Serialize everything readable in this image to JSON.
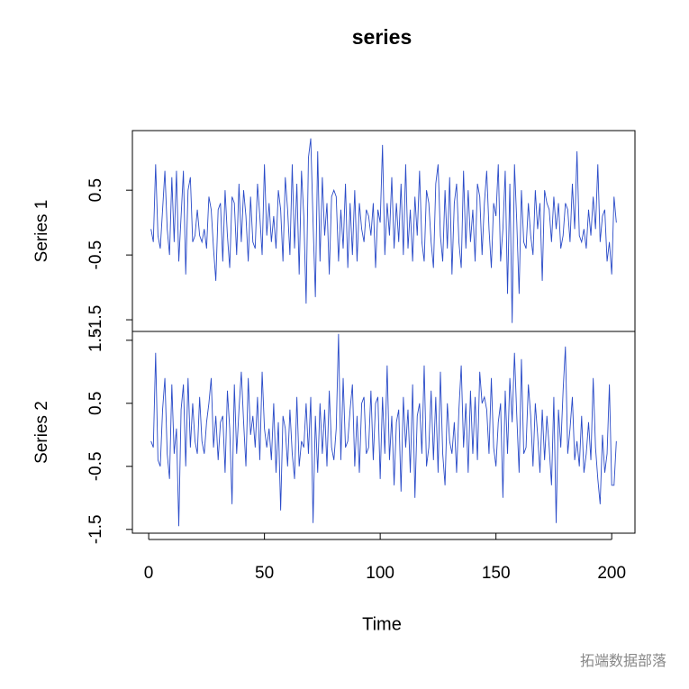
{
  "chart_data": {
    "type": "line",
    "title": "series",
    "xlabel": "Time",
    "x": [
      1,
      2,
      3,
      4,
      5,
      6,
      7,
      8,
      9,
      10,
      11,
      12,
      13,
      14,
      15,
      16,
      17,
      18,
      19,
      20,
      21,
      22,
      23,
      24,
      25,
      26,
      27,
      28,
      29,
      30,
      31,
      32,
      33,
      34,
      35,
      36,
      37,
      38,
      39,
      40,
      41,
      42,
      43,
      44,
      45,
      46,
      47,
      48,
      49,
      50,
      51,
      52,
      53,
      54,
      55,
      56,
      57,
      58,
      59,
      60,
      61,
      62,
      63,
      64,
      65,
      66,
      67,
      68,
      69,
      70,
      71,
      72,
      73,
      74,
      75,
      76,
      77,
      78,
      79,
      80,
      81,
      82,
      83,
      84,
      85,
      86,
      87,
      88,
      89,
      90,
      91,
      92,
      93,
      94,
      95,
      96,
      97,
      98,
      99,
      100,
      101,
      102,
      103,
      104,
      105,
      106,
      107,
      108,
      109,
      110,
      111,
      112,
      113,
      114,
      115,
      116,
      117,
      118,
      119,
      120,
      121,
      122,
      123,
      124,
      125,
      126,
      127,
      128,
      129,
      130,
      131,
      132,
      133,
      134,
      135,
      136,
      137,
      138,
      139,
      140,
      141,
      142,
      143,
      144,
      145,
      146,
      147,
      148,
      149,
      150,
      151,
      152,
      153,
      154,
      155,
      156,
      157,
      158,
      159,
      160,
      161,
      162,
      163,
      164,
      165,
      166,
      167,
      168,
      169,
      170,
      171,
      172,
      173,
      174,
      175,
      176,
      177,
      178,
      179,
      180,
      181,
      182,
      183,
      184,
      185,
      186,
      187,
      188,
      189,
      190,
      191,
      192,
      193,
      194,
      195,
      196,
      197,
      198,
      199,
      200,
      201,
      202
    ],
    "xlim": [
      -7.04,
      210.04
    ],
    "xticks": [
      0,
      50,
      100,
      150,
      200
    ],
    "series": [
      {
        "name": "Series 1",
        "color": "#2a4bc8",
        "ylim": [
          -1.68,
          1.42
        ],
        "yticks": [
          -1.5,
          -0.5,
          0.5
        ],
        "values": [
          -0.1,
          -0.3,
          0.9,
          -0.2,
          -0.4,
          0.2,
          0.8,
          -0.1,
          -0.5,
          0.7,
          -0.3,
          0.8,
          -0.6,
          0.1,
          0.8,
          -0.8,
          0.5,
          0.7,
          -0.3,
          -0.2,
          0.2,
          -0.2,
          -0.3,
          -0.1,
          -0.4,
          0.4,
          0.2,
          -0.4,
          -0.9,
          0.2,
          0.3,
          -0.6,
          0.5,
          -0.2,
          -0.7,
          0.4,
          0.3,
          -0.5,
          0.6,
          -0.3,
          0.5,
          0.1,
          -0.6,
          0.4,
          -0.3,
          -0.4,
          0.6,
          0.1,
          -0.5,
          0.9,
          -0.2,
          0.3,
          -0.3,
          0.1,
          -0.4,
          0.5,
          0.2,
          -0.6,
          0.7,
          0.2,
          -0.5,
          0.9,
          -0.4,
          0.6,
          -0.8,
          0.8,
          0.1,
          -1.25,
          1.0,
          1.3,
          0.0,
          -1.15,
          1.1,
          -0.6,
          0.7,
          -0.2,
          0.3,
          -0.8,
          0.4,
          0.5,
          0.4,
          -0.6,
          0.2,
          -0.4,
          0.6,
          -0.7,
          0.3,
          -0.5,
          0.5,
          -0.6,
          0.3,
          -0.1,
          -0.3,
          0.2,
          0.1,
          -0.2,
          0.3,
          -0.7,
          0.2,
          0.0,
          1.2,
          -0.5,
          0.3,
          -0.2,
          0.7,
          -0.4,
          0.3,
          -0.3,
          0.6,
          -0.5,
          0.9,
          -0.4,
          0.2,
          -0.6,
          0.4,
          -0.2,
          0.8,
          -0.3,
          -0.6,
          0.5,
          0.3,
          -0.3,
          -0.7,
          0.6,
          0.9,
          -0.2,
          -0.6,
          0.5,
          -0.4,
          0.7,
          -0.8,
          0.3,
          0.6,
          -0.3,
          -0.7,
          0.8,
          -0.4,
          0.5,
          -0.3,
          0.2,
          -0.6,
          0.6,
          0.4,
          -0.5,
          0.3,
          0.8,
          -0.1,
          -0.7,
          0.3,
          0.1,
          0.9,
          -0.6,
          -0.1,
          0.8,
          -1.1,
          0.6,
          -1.55,
          0.9,
          0.0,
          -1.1,
          0.5,
          -0.3,
          -0.4,
          0.3,
          -0.2,
          -0.5,
          0.5,
          -0.1,
          0.3,
          -0.9,
          0.5,
          0.3,
          0.2,
          -0.3,
          0.4,
          -0.1,
          0.3,
          -0.4,
          -0.2,
          0.3,
          0.2,
          -0.3,
          0.6,
          -0.1,
          1.1,
          -0.2,
          -0.3,
          -0.1,
          -0.4,
          0.2,
          -0.2,
          0.4,
          -0.1,
          0.9,
          -0.3,
          0.1,
          0.2,
          -0.6,
          -0.3,
          -0.8,
          0.4,
          0.0
        ]
      },
      {
        "name": "Series 2",
        "color": "#2a4bc8",
        "ylim": [
          -1.56,
          1.64
        ],
        "yticks": [
          -1.5,
          -0.5,
          0.5,
          1.5
        ],
        "values": [
          -0.1,
          -0.2,
          1.3,
          -0.4,
          -0.5,
          0.4,
          0.9,
          -0.3,
          -0.7,
          0.8,
          -0.3,
          0.1,
          -1.45,
          0.4,
          0.8,
          -0.5,
          0.9,
          -0.2,
          0.5,
          -0.1,
          -0.3,
          0.6,
          -0.1,
          -0.3,
          0.2,
          0.5,
          0.9,
          -0.2,
          0.3,
          -0.4,
          0.2,
          0.3,
          -0.6,
          0.7,
          0.1,
          -1.1,
          0.8,
          -0.3,
          0.4,
          1.0,
          0.2,
          -0.5,
          0.9,
          0.0,
          0.3,
          -0.2,
          0.6,
          -0.4,
          1.0,
          0.1,
          -0.2,
          0.1,
          -0.4,
          0.5,
          -0.6,
          0.2,
          -1.2,
          0.3,
          0.1,
          -0.5,
          0.4,
          -0.3,
          -0.7,
          0.6,
          -0.5,
          -0.1,
          -0.2,
          0.5,
          -0.3,
          0.6,
          -1.4,
          0.3,
          -0.6,
          0.5,
          -0.3,
          0.4,
          -0.5,
          0.7,
          -0.2,
          -0.4,
          0.1,
          1.6,
          -0.4,
          0.9,
          -0.2,
          -0.1,
          0.4,
          0.8,
          -0.5,
          0.3,
          -0.6,
          0.5,
          0.6,
          -0.3,
          -0.2,
          0.7,
          -0.4,
          0.5,
          0.6,
          -0.7,
          0.6,
          -0.3,
          1.1,
          -0.4,
          0.3,
          -0.8,
          0.2,
          0.4,
          -0.9,
          0.6,
          -0.2,
          0.4,
          -0.6,
          0.8,
          -1.0,
          0.3,
          0.5,
          -0.3,
          1.1,
          -0.5,
          -0.2,
          0.7,
          -0.4,
          0.6,
          -0.6,
          1.0,
          -0.3,
          -0.8,
          0.5,
          -0.1,
          -0.3,
          0.2,
          -0.6,
          0.4,
          1.1,
          -0.2,
          0.5,
          -0.6,
          0.7,
          -0.3,
          0.6,
          -0.4,
          1.0,
          0.5,
          0.6,
          0.4,
          -0.3,
          0.9,
          -0.2,
          -0.5,
          0.2,
          0.5,
          -1.0,
          0.7,
          -0.3,
          0.9,
          0.2,
          1.3,
          0.3,
          -0.6,
          1.2,
          -0.3,
          -0.2,
          0.8,
          0.3,
          -0.5,
          0.5,
          0.0,
          -0.6,
          0.4,
          -0.4,
          0.3,
          -0.2,
          -0.8,
          0.6,
          -1.4,
          0.4,
          -0.2,
          0.7,
          1.4,
          -0.3,
          0.1,
          0.6,
          -0.4,
          -0.1,
          -0.5,
          0.3,
          -0.6,
          -0.3,
          0.2,
          -0.4,
          0.9,
          -0.2,
          -0.7,
          -1.1,
          0.0,
          -0.6,
          -0.3,
          0.8,
          -0.8,
          -0.8,
          -0.1
        ]
      }
    ],
    "watermark": "拓端数据部落"
  }
}
